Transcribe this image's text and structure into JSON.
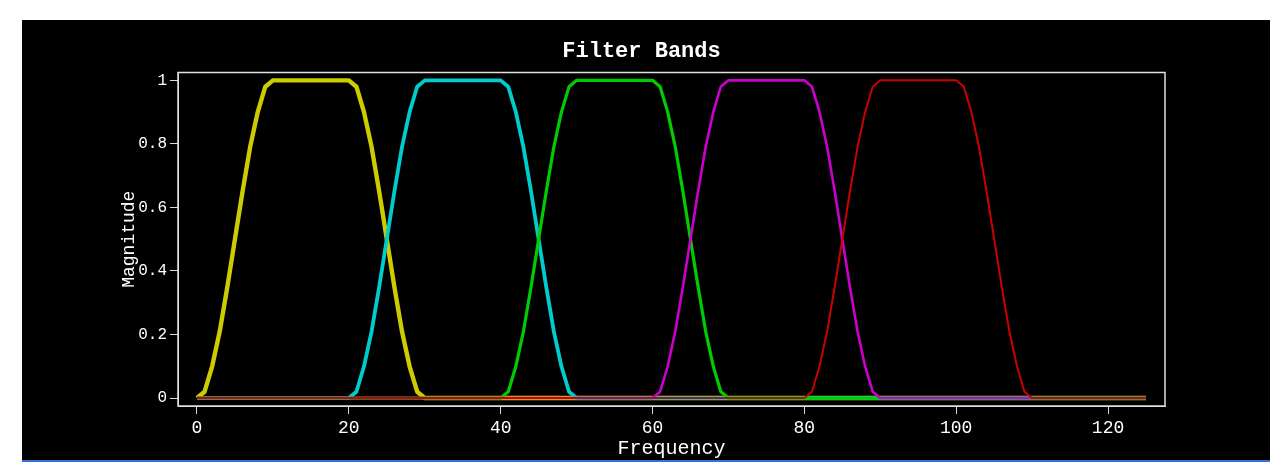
{
  "chart_data": {
    "type": "line",
    "title": "Filter Bands",
    "xlabel": "Frequency",
    "ylabel": "Magnitude",
    "xlim": [
      -2.5,
      127.5
    ],
    "xticks": [
      0,
      20,
      40,
      60,
      80,
      100,
      120
    ],
    "ylim": [
      -0.025,
      1.025
    ],
    "yticks": [
      0,
      0.2,
      0.4,
      0.6,
      0.8,
      1
    ],
    "grid": false,
    "legend": false,
    "marker": "none",
    "line_style": "solid",
    "series": [
      {
        "color": "#cccc00",
        "x": [
          0,
          1,
          2,
          3,
          4,
          5,
          6,
          7,
          8,
          9,
          10,
          20,
          21,
          22,
          23,
          24,
          25,
          26,
          27,
          28,
          29,
          30,
          125
        ],
        "values": [
          0,
          0.02,
          0.1,
          0.21,
          0.35,
          0.5,
          0.65,
          0.79,
          0.9,
          0.98,
          1,
          1,
          0.98,
          0.9,
          0.79,
          0.65,
          0.5,
          0.35,
          0.21,
          0.1,
          0.02,
          0,
          0
        ]
      },
      {
        "color": "#00cccc",
        "x": [
          0,
          20,
          21,
          22,
          23,
          24,
          25,
          26,
          27,
          28,
          29,
          30,
          40,
          41,
          42,
          43,
          44,
          45,
          46,
          47,
          48,
          49,
          50,
          125
        ],
        "values": [
          0,
          0,
          0.02,
          0.1,
          0.21,
          0.35,
          0.5,
          0.65,
          0.79,
          0.9,
          0.98,
          1,
          1,
          0.98,
          0.9,
          0.79,
          0.65,
          0.5,
          0.35,
          0.21,
          0.1,
          0.02,
          0,
          0
        ]
      },
      {
        "color": "#00cc00",
        "x": [
          0,
          40,
          41,
          42,
          43,
          44,
          45,
          46,
          47,
          48,
          49,
          50,
          60,
          61,
          62,
          63,
          64,
          65,
          66,
          67,
          68,
          69,
          70,
          125
        ],
        "values": [
          0,
          0,
          0.02,
          0.1,
          0.21,
          0.35,
          0.5,
          0.65,
          0.79,
          0.9,
          0.98,
          1,
          1,
          0.98,
          0.9,
          0.79,
          0.65,
          0.5,
          0.35,
          0.21,
          0.1,
          0.02,
          0,
          0
        ]
      },
      {
        "color": "#cc00cc",
        "x": [
          0,
          60,
          61,
          62,
          63,
          64,
          65,
          66,
          67,
          68,
          69,
          70,
          80,
          81,
          82,
          83,
          84,
          85,
          86,
          87,
          88,
          89,
          90,
          125
        ],
        "values": [
          0,
          0,
          0.02,
          0.1,
          0.21,
          0.35,
          0.5,
          0.65,
          0.79,
          0.9,
          0.98,
          1,
          1,
          0.98,
          0.9,
          0.79,
          0.65,
          0.5,
          0.35,
          0.21,
          0.1,
          0.02,
          0,
          0
        ]
      },
      {
        "color": "#cc0000",
        "x": [
          0,
          80,
          81,
          82,
          83,
          84,
          85,
          86,
          87,
          88,
          89,
          90,
          100,
          101,
          102,
          103,
          104,
          105,
          106,
          107,
          108,
          109,
          110,
          125
        ],
        "values": [
          0,
          0,
          0.02,
          0.1,
          0.21,
          0.35,
          0.5,
          0.65,
          0.79,
          0.9,
          0.98,
          1,
          1,
          0.98,
          0.9,
          0.79,
          0.65,
          0.5,
          0.35,
          0.21,
          0.1,
          0.02,
          0,
          0
        ]
      }
    ]
  }
}
